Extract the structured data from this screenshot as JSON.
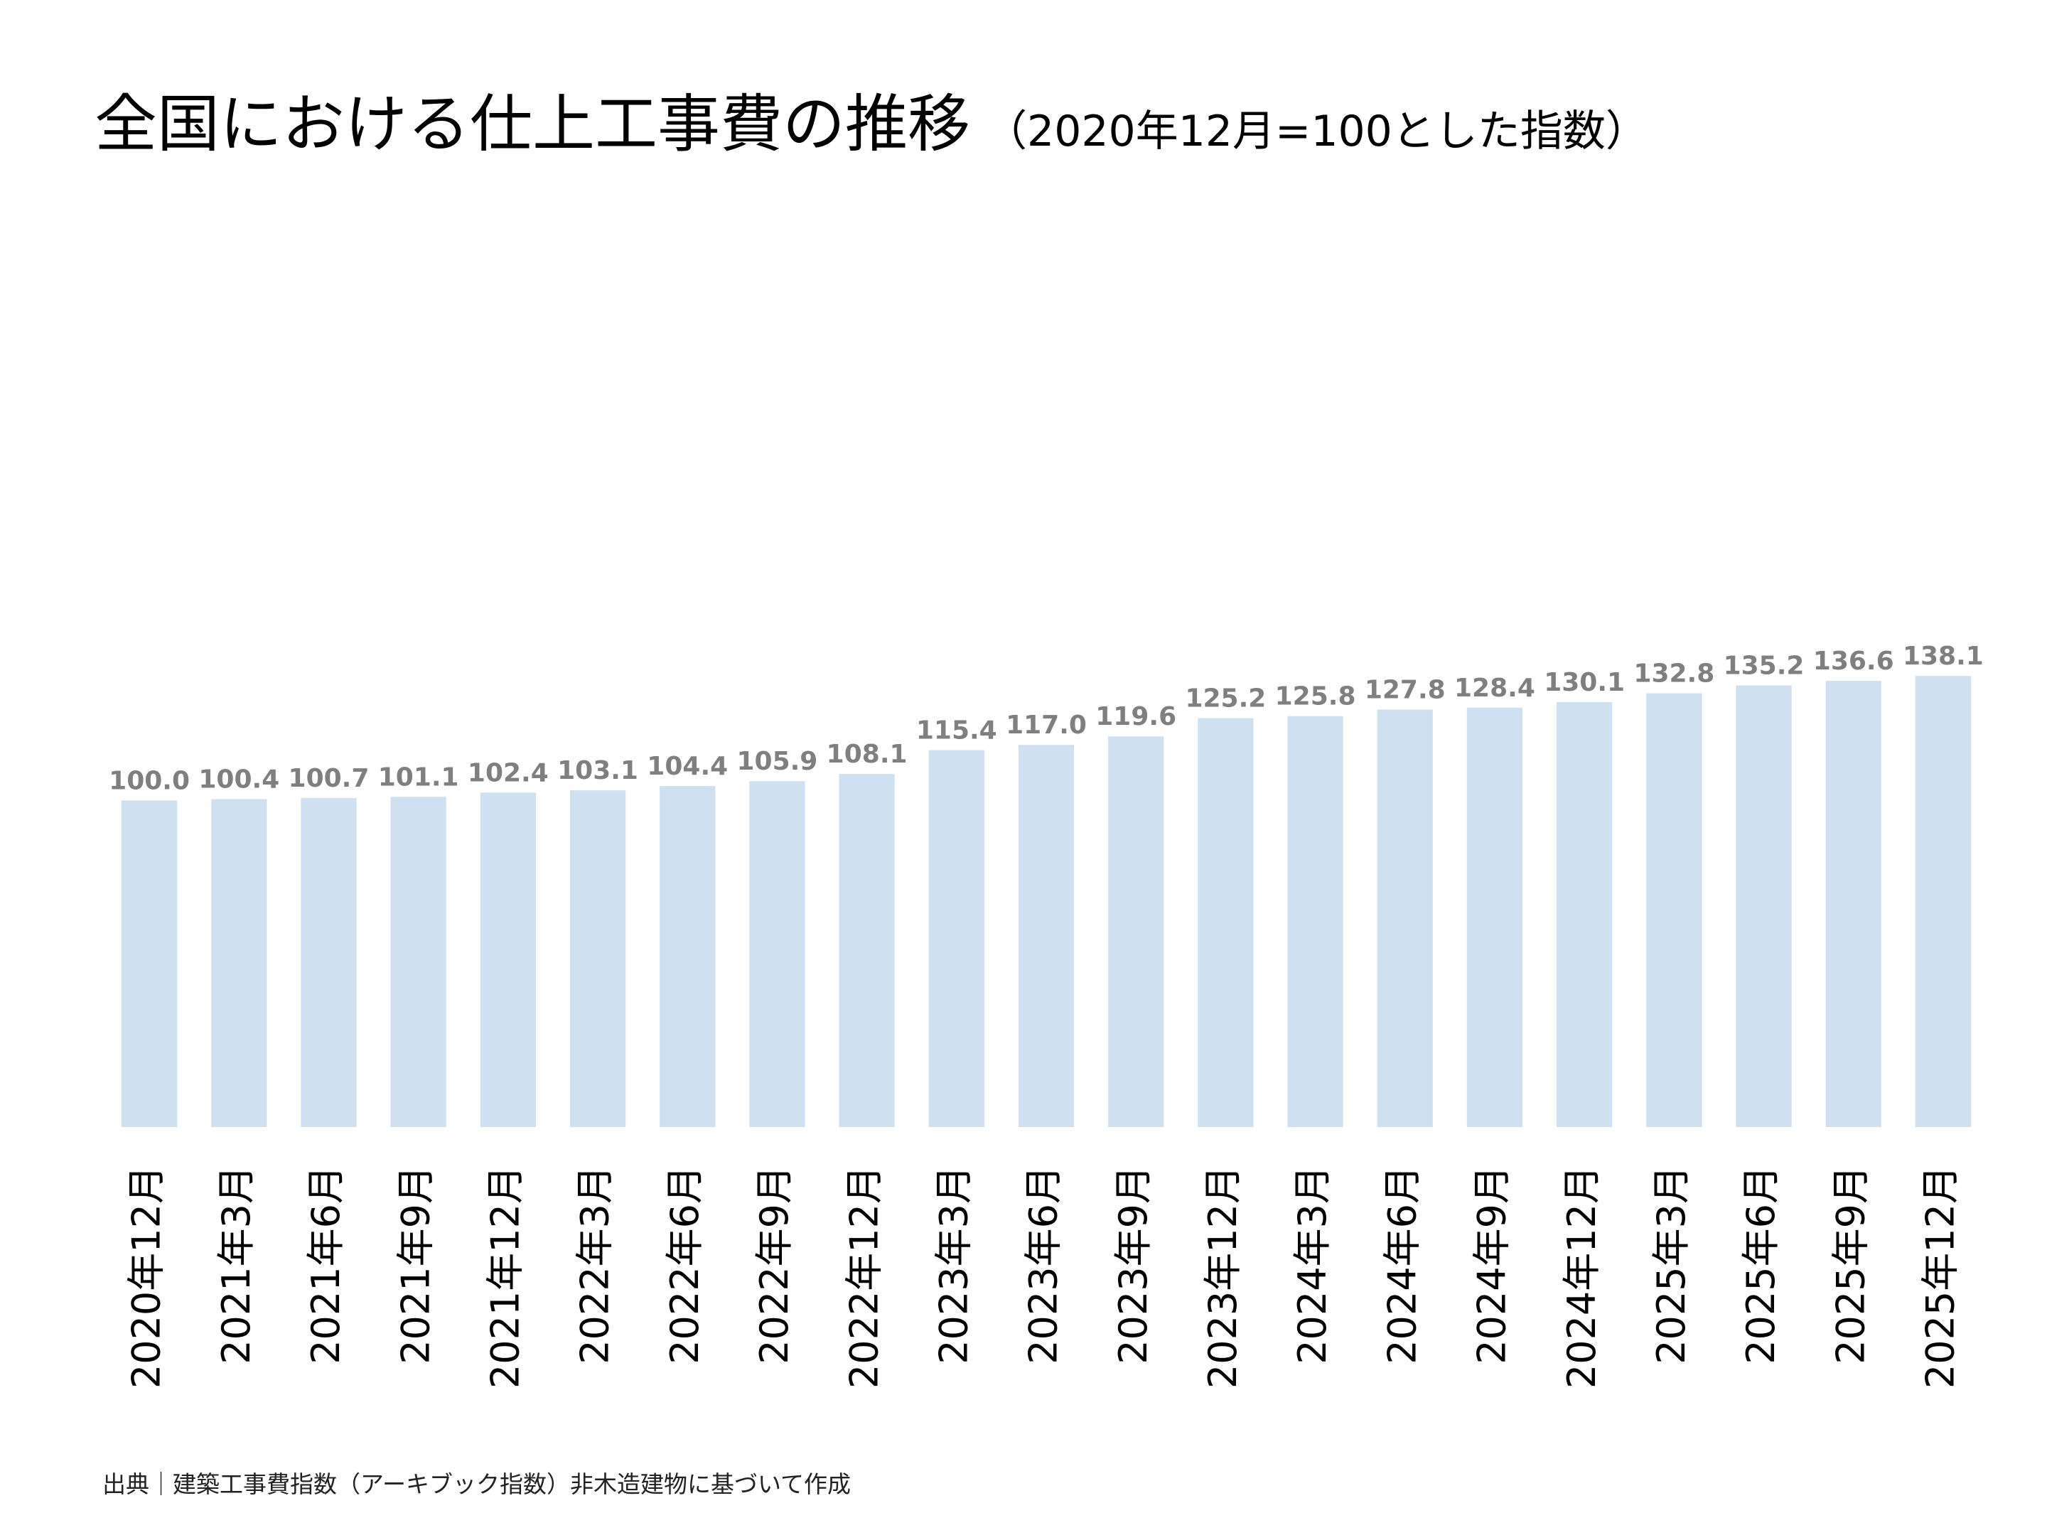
{
  "chart_data": {
    "type": "bar",
    "title": "全国における仕上工事費の推移",
    "subtitle": "（2020年12月=100とした指数）",
    "source": "出典｜建築工事費指数（アーキブック指数）非木造建物に基づいて作成",
    "categories": [
      "2020年12月",
      "2021年3月",
      "2021年6月",
      "2021年9月",
      "2021年12月",
      "2022年3月",
      "2022年6月",
      "2022年9月",
      "2022年12月",
      "2023年3月",
      "2023年6月",
      "2023年9月",
      "2023年12月",
      "2024年3月",
      "2024年6月",
      "2024年9月",
      "2024年12月",
      "2025年3月",
      "2025年6月",
      "2025年9月",
      "2025年12月"
    ],
    "values": [
      100.0,
      100.4,
      100.7,
      101.1,
      102.4,
      103.1,
      104.4,
      105.9,
      108.1,
      115.4,
      117.0,
      119.6,
      125.2,
      125.8,
      127.8,
      128.4,
      130.1,
      132.8,
      135.2,
      136.6,
      138.1
    ],
    "value_labels": [
      "100.0",
      "100.4",
      "100.7",
      "101.1",
      "102.4",
      "103.1",
      "104.4",
      "105.9",
      "108.1",
      "115.4",
      "117.0",
      "119.6",
      "125.2",
      "125.8",
      "127.8",
      "128.4",
      "130.1",
      "132.8",
      "135.2",
      "136.6",
      "138.1"
    ],
    "color": "#cfe0f1",
    "ylim": [
      0,
      300
    ]
  }
}
